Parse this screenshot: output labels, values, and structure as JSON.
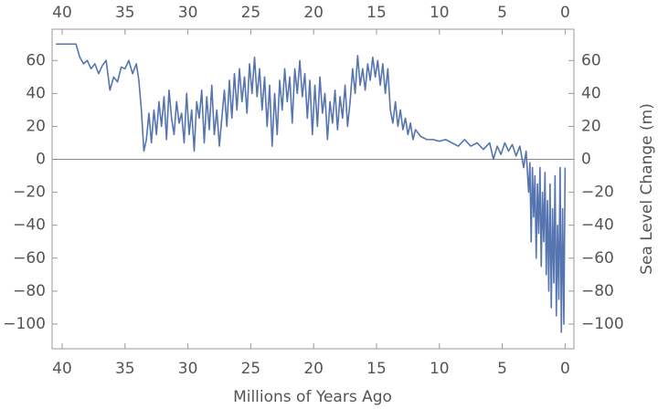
{
  "chart_data": {
    "type": "line",
    "x_label": "Millions of Years Ago",
    "y_label": "Sea Level Change (m)",
    "color": "#5574b0",
    "zero_line": true,
    "xlim": [
      40.8,
      -0.7
    ],
    "ylim": [
      -115,
      79
    ],
    "xticks": [
      40,
      35,
      30,
      25,
      20,
      15,
      10,
      5,
      0
    ],
    "yticks": [
      {
        "value": -100,
        "label": "−100"
      },
      {
        "value": -80,
        "label": "−80"
      },
      {
        "value": -60,
        "label": "−60"
      },
      {
        "value": -40,
        "label": "−40"
      },
      {
        "value": -20,
        "label": "−20"
      },
      0,
      20,
      40,
      60
    ],
    "x": [
      40.5,
      39.5,
      38.9,
      38.6,
      38.3,
      38,
      37.7,
      37.4,
      37.1,
      36.8,
      36.5,
      36.2,
      35.9,
      35.6,
      35.3,
      35,
      34.7,
      34.4,
      34.1,
      33.9,
      33.7,
      33.5,
      33.3,
      33.1,
      32.9,
      32.7,
      32.5,
      32.3,
      32.1,
      31.9,
      31.7,
      31.5,
      31.3,
      31.1,
      30.9,
      30.7,
      30.5,
      30.3,
      30.1,
      29.9,
      29.7,
      29.5,
      29.3,
      29.1,
      28.9,
      28.7,
      28.5,
      28.3,
      28.1,
      27.9,
      27.7,
      27.5,
      27.3,
      27.1,
      26.9,
      26.7,
      26.5,
      26.3,
      26.1,
      25.9,
      25.7,
      25.5,
      25.3,
      25.1,
      24.9,
      24.7,
      24.5,
      24.3,
      24.1,
      23.9,
      23.7,
      23.5,
      23.3,
      23.1,
      22.9,
      22.7,
      22.5,
      22.3,
      22.1,
      21.9,
      21.7,
      21.5,
      21.3,
      21.1,
      20.9,
      20.7,
      20.5,
      20.3,
      20.1,
      19.9,
      19.7,
      19.5,
      19.3,
      19.1,
      18.9,
      18.7,
      18.5,
      18.3,
      18.1,
      17.9,
      17.7,
      17.5,
      17.3,
      17.1,
      16.9,
      16.7,
      16.5,
      16.3,
      16.1,
      15.9,
      15.7,
      15.5,
      15.3,
      15.1,
      14.9,
      14.7,
      14.5,
      14.3,
      14.1,
      13.9,
      13.7,
      13.5,
      13.3,
      13.1,
      12.9,
      12.7,
      12.5,
      12.3,
      12.1,
      11.9,
      11.5,
      11,
      10.5,
      10,
      9.5,
      9,
      8.5,
      8,
      7.5,
      7,
      6.5,
      6,
      5.7,
      5.4,
      5.1,
      4.8,
      4.5,
      4.2,
      3.9,
      3.6,
      3.3,
      3.1,
      2.9,
      2.8,
      2.7,
      2.6,
      2.5,
      2.4,
      2.3,
      2.2,
      2.1,
      2,
      1.9,
      1.8,
      1.7,
      1.6,
      1.5,
      1.4,
      1.3,
      1.2,
      1.1,
      1,
      0.9,
      0.8,
      0.7,
      0.6,
      0.5,
      0.4,
      0.3,
      0.2,
      0.1,
      0
    ],
    "values": [
      70,
      70,
      70,
      62,
      58,
      60,
      55,
      58,
      52,
      57,
      60,
      42,
      50,
      47,
      56,
      55,
      60,
      52,
      58,
      48,
      30,
      5,
      12,
      28,
      10,
      30,
      15,
      35,
      20,
      38,
      12,
      42,
      25,
      15,
      35,
      22,
      28,
      10,
      40,
      15,
      30,
      5,
      35,
      25,
      42,
      10,
      38,
      18,
      45,
      15,
      30,
      8,
      25,
      42,
      20,
      48,
      25,
      52,
      30,
      55,
      35,
      50,
      28,
      58,
      40,
      62,
      38,
      55,
      30,
      50,
      20,
      45,
      8,
      40,
      15,
      48,
      30,
      55,
      35,
      50,
      22,
      55,
      40,
      60,
      38,
      52,
      25,
      48,
      15,
      45,
      20,
      50,
      28,
      40,
      12,
      35,
      22,
      42,
      18,
      38,
      25,
      45,
      20,
      35,
      55,
      40,
      63,
      45,
      55,
      42,
      58,
      48,
      62,
      50,
      60,
      45,
      58,
      40,
      55,
      30,
      22,
      35,
      20,
      30,
      18,
      25,
      15,
      22,
      12,
      18,
      14,
      12,
      12,
      11,
      12,
      10,
      8,
      12,
      8,
      10,
      6,
      10,
      0,
      8,
      3,
      10,
      5,
      9,
      2,
      8,
      -5,
      5,
      -20,
      -2,
      -50,
      -5,
      -35,
      -10,
      -60,
      -15,
      -45,
      -5,
      -65,
      -20,
      -50,
      -8,
      -70,
      -25,
      -80,
      -15,
      -90,
      -30,
      -75,
      -10,
      -95,
      -40,
      -85,
      -5,
      -105,
      -30,
      -100,
      -5
    ]
  }
}
